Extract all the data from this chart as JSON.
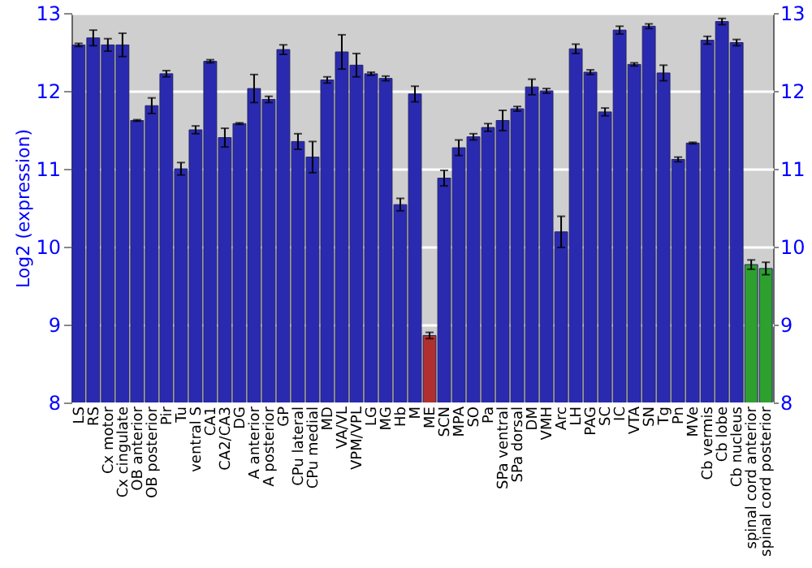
{
  "chart_data": {
    "type": "bar",
    "ylabel": "Log2 (expression)",
    "categories": [
      "LS",
      "RS",
      "Cx motor",
      "Cx cingulate",
      "OB anterior",
      "OB posterior",
      "Pir",
      "Tu",
      "ventral S",
      "CA1",
      "CA2/CA3",
      "DG",
      "A anterior",
      "A posterior",
      "GP",
      "CPu lateral",
      "CPu medial",
      "MD",
      "VA/VL",
      "VPM/VPL",
      "LG",
      "MG",
      "Hb",
      "M",
      "ME",
      "SCN",
      "MPA",
      "SO",
      "Pa",
      "SPa ventral",
      "SPa dorsal",
      "DM",
      "VMH",
      "Arc",
      "LH",
      "PAG",
      "SC",
      "IC",
      "VTA",
      "SN",
      "Tg",
      "Pn",
      "MVe",
      "Cb vermis",
      "Cb lobe",
      "Cb nucleus",
      "spinal cord anterior",
      "spinal cord posterior"
    ],
    "values": [
      12.59,
      12.68,
      12.59,
      12.59,
      11.62,
      11.81,
      12.22,
      11.0,
      11.5,
      12.38,
      11.4,
      11.58,
      12.03,
      11.89,
      12.53,
      11.35,
      11.15,
      12.14,
      12.5,
      12.33,
      12.22,
      12.16,
      10.54,
      11.96,
      8.86,
      10.88,
      11.27,
      11.41,
      11.53,
      11.62,
      11.77,
      12.05,
      12.0,
      10.19,
      12.54,
      12.24,
      11.73,
      12.78,
      12.34,
      12.83,
      12.23,
      11.12,
      11.33,
      12.65,
      12.89,
      12.62,
      9.77,
      9.72
    ],
    "errors": [
      0.02,
      0.1,
      0.08,
      0.15,
      0.01,
      0.1,
      0.04,
      0.08,
      0.05,
      0.02,
      0.12,
      0.01,
      0.18,
      0.04,
      0.06,
      0.1,
      0.2,
      0.04,
      0.22,
      0.15,
      0.02,
      0.03,
      0.08,
      0.1,
      0.04,
      0.1,
      0.1,
      0.04,
      0.05,
      0.13,
      0.03,
      0.1,
      0.03,
      0.2,
      0.06,
      0.03,
      0.05,
      0.05,
      0.02,
      0.03,
      0.1,
      0.03,
      0.01,
      0.05,
      0.04,
      0.04,
      0.06,
      0.08
    ],
    "colors": [
      "#2a2ab0",
      "#2a2ab0",
      "#2a2ab0",
      "#2a2ab0",
      "#2a2ab0",
      "#2a2ab0",
      "#2a2ab0",
      "#2a2ab0",
      "#2a2ab0",
      "#2a2ab0",
      "#2a2ab0",
      "#2a2ab0",
      "#2a2ab0",
      "#2a2ab0",
      "#2a2ab0",
      "#2a2ab0",
      "#2a2ab0",
      "#2a2ab0",
      "#2a2ab0",
      "#2a2ab0",
      "#2a2ab0",
      "#2a2ab0",
      "#2a2ab0",
      "#2a2ab0",
      "#b03030",
      "#2a2ab0",
      "#2a2ab0",
      "#2a2ab0",
      "#2a2ab0",
      "#2a2ab0",
      "#2a2ab0",
      "#2a2ab0",
      "#2a2ab0",
      "#2a2ab0",
      "#2a2ab0",
      "#2a2ab0",
      "#2a2ab0",
      "#2a2ab0",
      "#2a2ab0",
      "#2a2ab0",
      "#2a2ab0",
      "#2a2ab0",
      "#2a2ab0",
      "#2a2ab0",
      "#2a2ab0",
      "#2a2ab0",
      "#2ea02e",
      "#2ea02e"
    ],
    "ylim": [
      8,
      13
    ],
    "yticks": [
      8,
      9,
      10,
      11,
      12,
      13
    ],
    "y2lim": [
      8,
      13
    ],
    "y2ticks": [
      8,
      9,
      10,
      11,
      12,
      13
    ],
    "grid": "y"
  }
}
